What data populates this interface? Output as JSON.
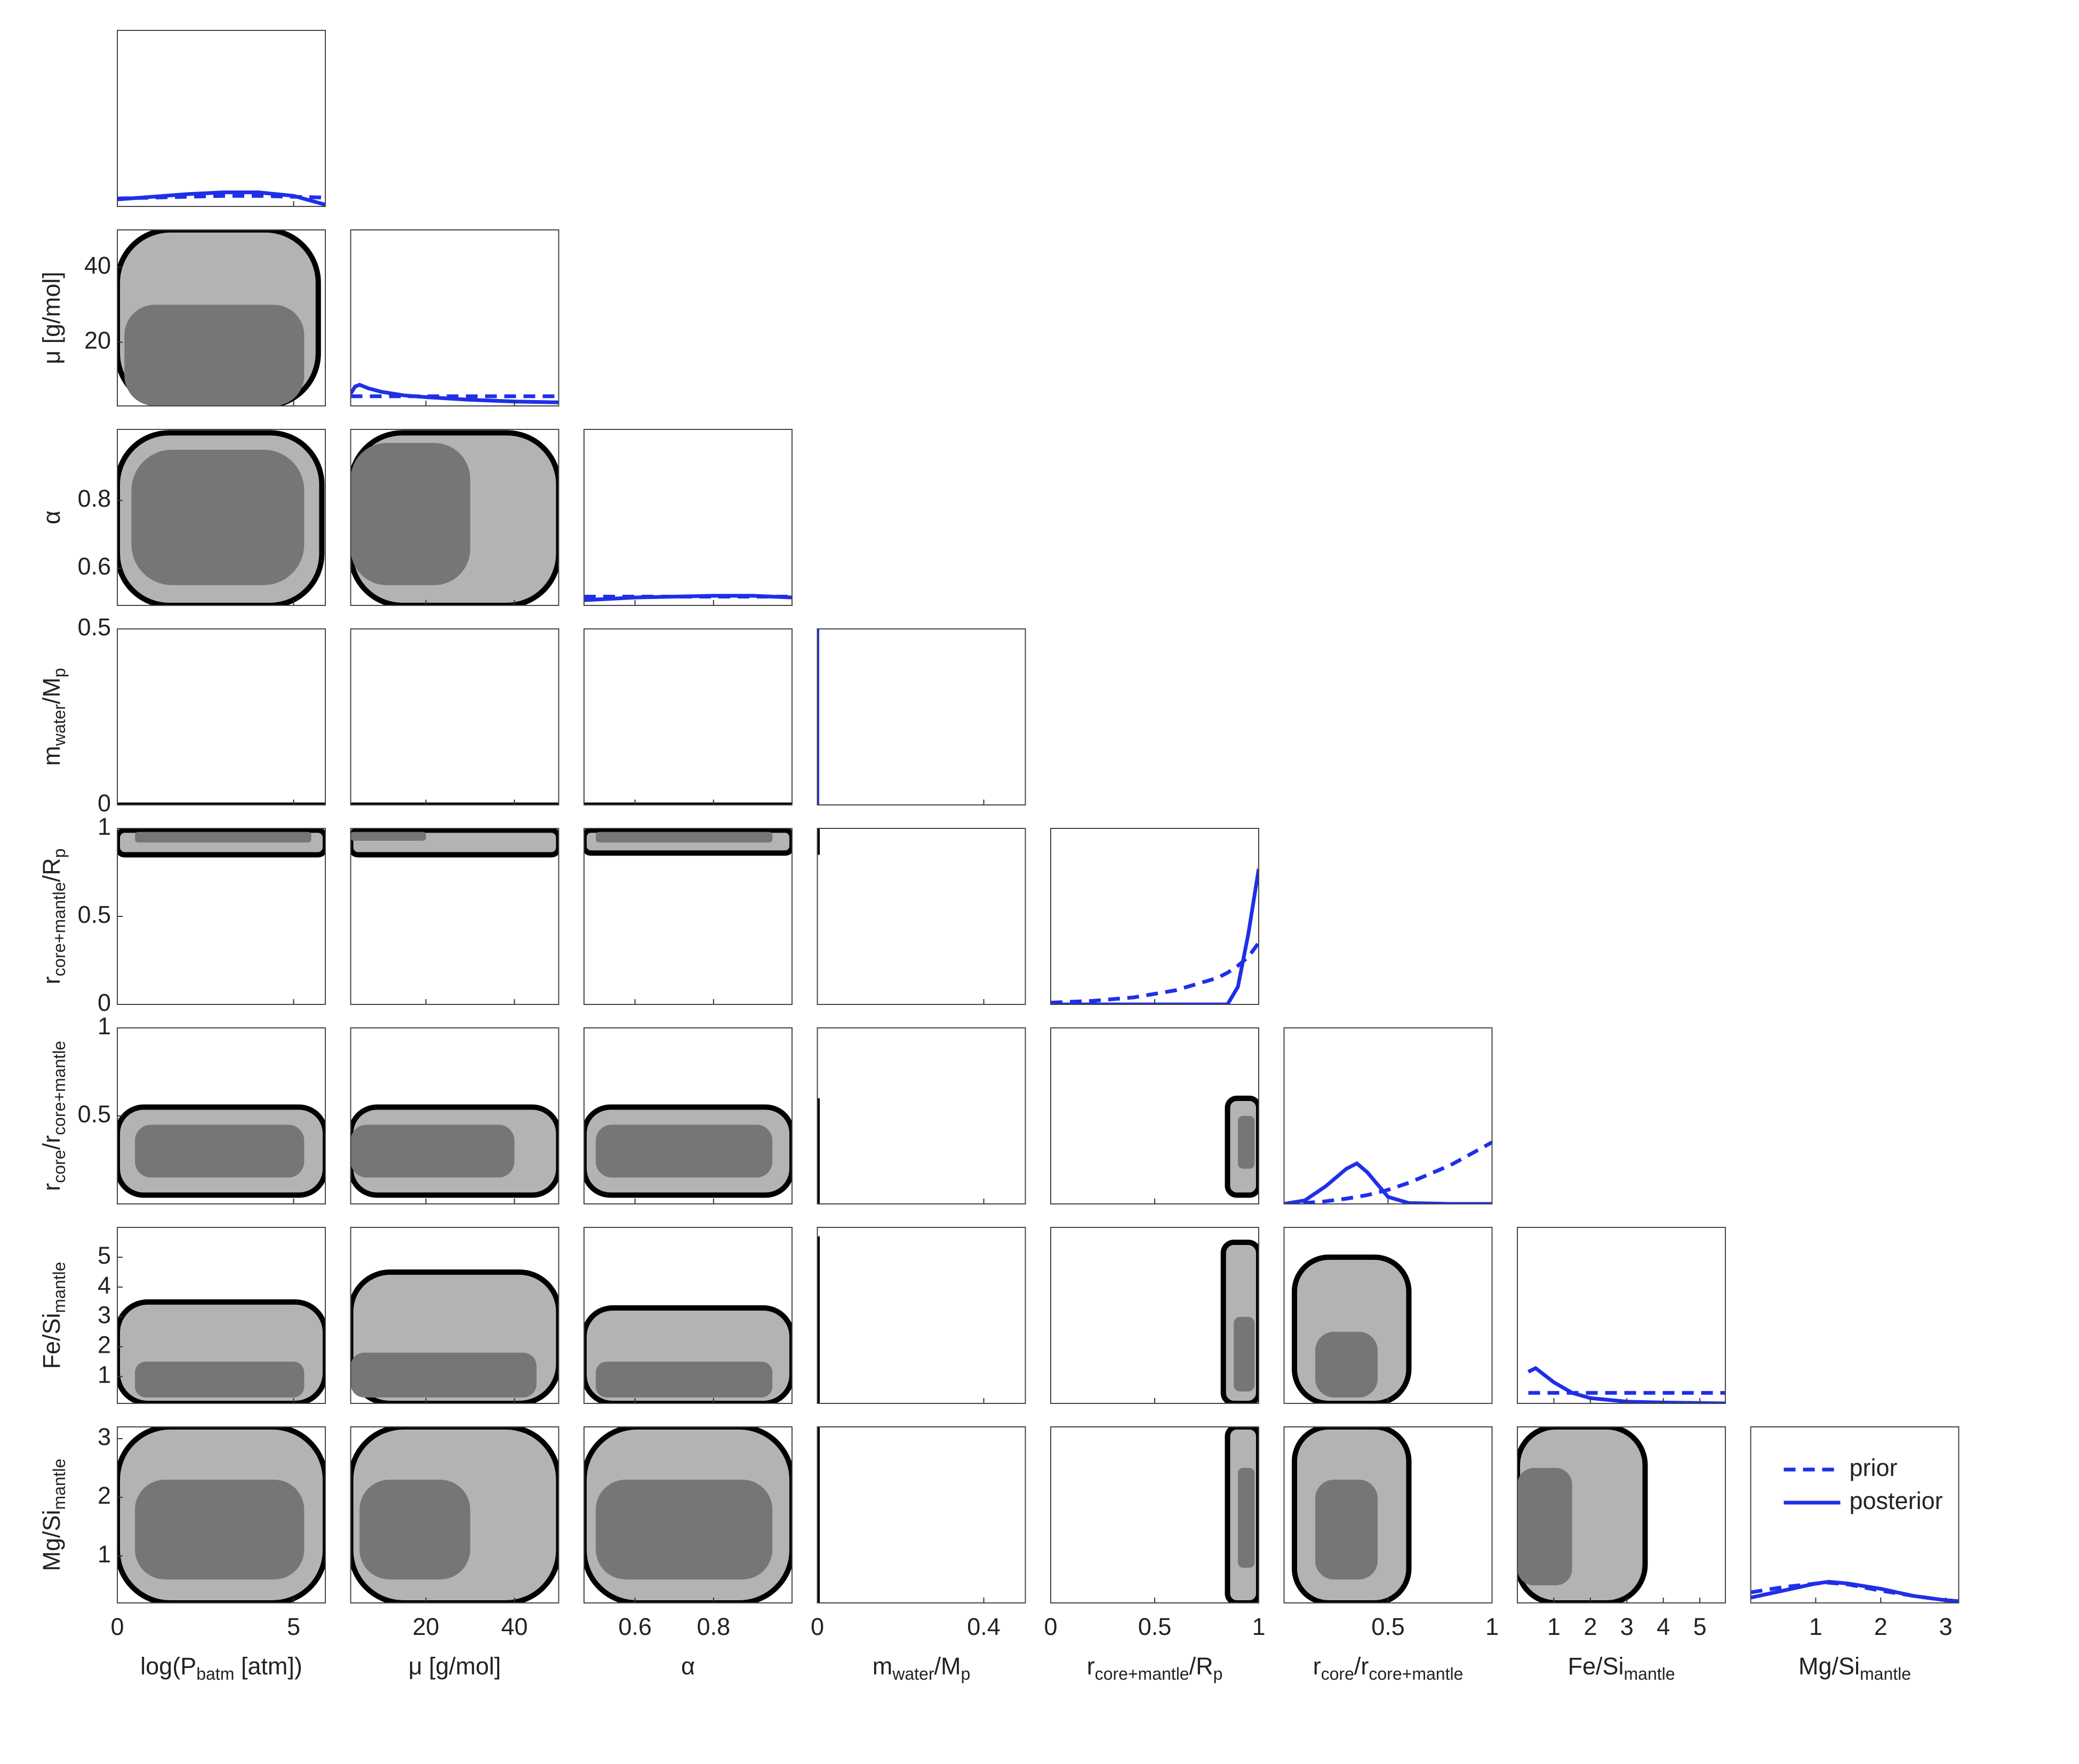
{
  "chart_data": {
    "type": "corner",
    "series": [
      {
        "name": "prior",
        "color": "#1f2fe8",
        "dashed": true
      },
      {
        "name": "posterior",
        "color": "#1f2fe8",
        "dashed": false
      }
    ],
    "diag_ylim": [
      0,
      1
    ],
    "variables": [
      {
        "label": [
          "log(P",
          "batm",
          " [atm])"
        ],
        "xlim": [
          0,
          5.9
        ],
        "xticks": [
          0,
          5
        ]
      },
      {
        "label": [
          "μ [g/mol]"
        ],
        "xlim": [
          3,
          50
        ],
        "xticks": [
          20,
          40
        ],
        "ylim": [
          3,
          50
        ],
        "yticks": [
          20,
          40
        ]
      },
      {
        "label": [
          "α"
        ],
        "xlim": [
          0.47,
          1
        ],
        "xticks": [
          0.6,
          0.8
        ],
        "ylim": [
          0.49,
          1.01
        ],
        "yticks": [
          0.6,
          0.8
        ]
      },
      {
        "label": [
          "m",
          "water",
          "/M",
          "p"
        ],
        "xlim": [
          0,
          0.5
        ],
        "xticks": [
          0,
          0.4
        ],
        "ylim": [
          0,
          0.5
        ],
        "yticks": [
          0,
          0.5
        ]
      },
      {
        "label": [
          "r",
          "core+mantle",
          "/R",
          "p"
        ],
        "xlim": [
          0,
          1
        ],
        "xticks": [
          0,
          0.5,
          1
        ],
        "ylim": [
          0,
          1
        ],
        "yticks": [
          0,
          0.5,
          1
        ]
      },
      {
        "label": [
          "r",
          "core",
          "/r",
          "core+mantle"
        ],
        "xlim": [
          0,
          1
        ],
        "xticks": [
          0.5,
          1
        ],
        "ylim": [
          0,
          1
        ],
        "yticks": [
          0.5,
          1
        ]
      },
      {
        "label": [
          "Fe/Si",
          "mantle"
        ],
        "xlim": [
          0,
          5.7
        ],
        "xticks": [
          1,
          2,
          3,
          4,
          5
        ],
        "ylim": [
          0.1,
          6
        ],
        "yticks": [
          1,
          2,
          3,
          4,
          5
        ]
      },
      {
        "label": [
          "Mg/Si",
          "mantle"
        ],
        "xlim": [
          0,
          3.2
        ],
        "xticks": [
          1,
          2,
          3
        ],
        "ylim": [
          0.2,
          3.2
        ],
        "yticks": [
          1,
          2,
          3
        ]
      }
    ],
    "diagonal": [
      {
        "curves": [
          {
            "x": [
              0,
              1,
              2,
              3,
              4,
              5,
              5.9
            ],
            "values": [
              0.045,
              0.05,
              0.055,
              0.06,
              0.06,
              0.055,
              0.05
            ]
          },
          {
            "x": [
              0,
              1,
              2,
              3,
              4,
              5,
              5.9
            ],
            "values": [
              0.04,
              0.055,
              0.07,
              0.08,
              0.08,
              0.06,
              0.01
            ]
          }
        ]
      },
      {
        "curves": [
          {
            "x": [
              3,
              50
            ],
            "values": [
              0.055,
              0.055
            ]
          },
          {
            "x": [
              3,
              4,
              5,
              7,
              10,
              15,
              20,
              30,
              40,
              50
            ],
            "values": [
              0.07,
              0.11,
              0.12,
              0.1,
              0.08,
              0.06,
              0.05,
              0.035,
              0.025,
              0.02
            ]
          }
        ]
      },
      {
        "curves": [
          {
            "x": [
              0.47,
              1
            ],
            "values": [
              0.05,
              0.05
            ]
          },
          {
            "x": [
              0.47,
              0.6,
              0.7,
              0.8,
              0.9,
              1
            ],
            "values": [
              0.03,
              0.045,
              0.05,
              0.055,
              0.055,
              0.045
            ]
          }
        ]
      },
      {
        "curves": [
          null,
          {
            "x": [
              0,
              0
            ],
            "values": [
              0,
              1
            ]
          }
        ]
      },
      {
        "curves": [
          {
            "x": [
              0,
              0.2,
              0.4,
              0.6,
              0.8,
              0.85,
              0.9,
              0.95,
              1
            ],
            "values": [
              0.01,
              0.02,
              0.04,
              0.08,
              0.15,
              0.18,
              0.22,
              0.27,
              0.35
            ]
          },
          {
            "x": [
              0,
              0.2,
              0.4,
              0.6,
              0.8,
              0.85,
              0.9,
              0.95,
              1
            ],
            "values": [
              0,
              0,
              0,
              0,
              0,
              0,
              0.1,
              0.4,
              0.77
            ]
          }
        ]
      },
      {
        "curves": [
          {
            "x": [
              0,
              0.1,
              0.2,
              0.3,
              0.35,
              0.4,
              0.5,
              0.6,
              0.8,
              1
            ],
            "values": [
              0,
              0.005,
              0.015,
              0.03,
              0.04,
              0.05,
              0.08,
              0.12,
              0.22,
              0.35
            ]
          },
          {
            "x": [
              0,
              0.1,
              0.2,
              0.3,
              0.35,
              0.4,
              0.5,
              0.6,
              0.8,
              1
            ],
            "values": [
              0,
              0.02,
              0.1,
              0.2,
              0.23,
              0.18,
              0.04,
              0.005,
              0,
              0
            ]
          }
        ]
      },
      {
        "curves": [
          {
            "x": [
              0.3,
              5.7
            ],
            "values": [
              0.06,
              0.06
            ]
          },
          {
            "x": [
              0.3,
              0.5,
              1,
              1.5,
              2,
              3,
              4,
              5.7
            ],
            "values": [
              0.18,
              0.2,
              0.12,
              0.06,
              0.03,
              0.01,
              0.005,
              0
            ]
          }
        ]
      },
      {
        "curves": [
          {
            "x": [
              0,
              0.5,
              1,
              1.2,
              1.5,
              2,
              2.5,
              3,
              3.2
            ],
            "values": [
              0.06,
              0.09,
              0.11,
              0.115,
              0.105,
              0.07,
              0.04,
              0.015,
              0.01
            ]
          },
          {
            "x": [
              0,
              0.5,
              1,
              1.2,
              1.5,
              2,
              2.5,
              3,
              3.2
            ],
            "values": [
              0.03,
              0.07,
              0.11,
              0.12,
              0.11,
              0.08,
              0.04,
              0.015,
              0.01
            ]
          }
        ]
      }
    ],
    "pairs": [
      [],
      [
        {
          "outer": [
            0,
            5.7,
            3,
            50
          ],
          "inner": [
            0.2,
            5.3,
            3,
            30
          ]
        }
      ],
      [
        {
          "outer": [
            0,
            5.8,
            0.49,
            1
          ],
          "inner": [
            0.4,
            5.3,
            0.55,
            0.95
          ]
        },
        {
          "outer": [
            3,
            50,
            0.49,
            1
          ],
          "inner": [
            3,
            30,
            0.55,
            0.97
          ]
        }
      ],
      [
        {
          "outer": [
            0,
            5.9,
            0,
            0
          ]
        },
        {
          "outer": [
            3,
            50,
            0,
            0
          ]
        },
        {
          "outer": [
            0.47,
            1,
            0,
            0
          ]
        }
      ],
      [
        {
          "outer": [
            0,
            5.9,
            0.85,
            0.99
          ],
          "inner": [
            0.5,
            5.5,
            0.92,
            0.98
          ]
        },
        {
          "outer": [
            3,
            50,
            0.85,
            0.99
          ],
          "inner": [
            3,
            20,
            0.93,
            0.98
          ]
        },
        {
          "outer": [
            0.47,
            1,
            0.86,
            0.99
          ],
          "inner": [
            0.5,
            0.95,
            0.92,
            0.98
          ]
        },
        {
          "outer": [
            0,
            0,
            0.85,
            1
          ]
        }
      ],
      [
        {
          "outer": [
            0,
            5.9,
            0.05,
            0.55
          ],
          "inner": [
            0.5,
            5.3,
            0.15,
            0.45
          ]
        },
        {
          "outer": [
            3,
            50,
            0.05,
            0.55
          ],
          "inner": [
            3,
            40,
            0.15,
            0.45
          ]
        },
        {
          "outer": [
            0.47,
            1,
            0.05,
            0.55
          ],
          "inner": [
            0.5,
            0.95,
            0.15,
            0.45
          ]
        },
        {
          "outer": [
            0,
            0,
            0,
            0.6
          ]
        },
        {
          "outer": [
            0.85,
            1,
            0.05,
            0.6
          ],
          "inner": [
            0.9,
            0.98,
            0.2,
            0.5
          ]
        }
      ],
      [
        {
          "outer": [
            0,
            5.9,
            0.1,
            3.5
          ],
          "inner": [
            0.5,
            5.3,
            0.3,
            1.5
          ]
        },
        {
          "outer": [
            3,
            50,
            0.1,
            4.5
          ],
          "inner": [
            3,
            45,
            0.3,
            1.8
          ]
        },
        {
          "outer": [
            0.47,
            1,
            0.1,
            3.3
          ],
          "inner": [
            0.5,
            0.95,
            0.3,
            1.5
          ]
        },
        {
          "outer": [
            0,
            0,
            0.1,
            5.7
          ]
        },
        {
          "outer": [
            0.83,
            1,
            0.1,
            5.5
          ],
          "inner": [
            0.88,
            0.98,
            0.5,
            3
          ]
        },
        {
          "outer": [
            0.05,
            0.6,
            0.1,
            5
          ],
          "inner": [
            0.15,
            0.45,
            0.3,
            2.5
          ]
        }
      ],
      [
        {
          "outer": [
            0,
            5.9,
            0.2,
            3.2
          ],
          "inner": [
            0.5,
            5.3,
            0.6,
            2.3
          ]
        },
        {
          "outer": [
            3,
            50,
            0.2,
            3.2
          ],
          "inner": [
            5,
            30,
            0.6,
            2.3
          ]
        },
        {
          "outer": [
            0.47,
            1,
            0.2,
            3.2
          ],
          "inner": [
            0.5,
            0.95,
            0.6,
            2.3
          ]
        },
        {
          "outer": [
            0,
            0,
            0.2,
            3.2
          ]
        },
        {
          "outer": [
            0.85,
            1,
            0.2,
            3.2
          ],
          "inner": [
            0.9,
            0.98,
            0.8,
            2.5
          ]
        },
        {
          "outer": [
            0.05,
            0.6,
            0.2,
            3.2
          ],
          "inner": [
            0.15,
            0.45,
            0.6,
            2.3
          ]
        },
        {
          "outer": [
            0,
            3.5,
            0.2,
            3.2
          ],
          "inner": [
            0,
            1.5,
            0.5,
            2.5
          ]
        }
      ]
    ]
  }
}
